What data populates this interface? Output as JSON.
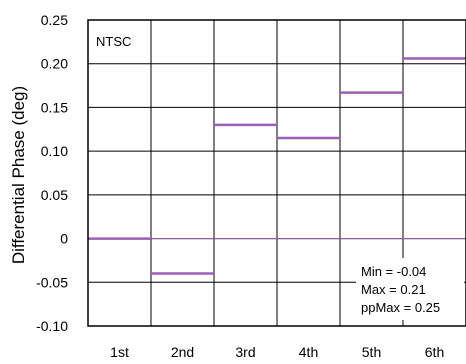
{
  "chart_data": {
    "type": "bar",
    "style": "horizontal step segments",
    "categories": [
      "1st",
      "2nd",
      "3rd",
      "4th",
      "5th",
      "6th"
    ],
    "values": [
      0.0,
      -0.04,
      0.13,
      0.115,
      0.167,
      0.206
    ],
    "ylabel": "Differential Phase (deg)",
    "xlabel": "",
    "ylim": [
      -0.1,
      0.25
    ],
    "yticks": [
      "0.25",
      "0.20",
      "0.15",
      "0.10",
      "0.05",
      "0",
      "-0.05",
      "-0.10"
    ],
    "ytick_values": [
      0.25,
      0.2,
      0.15,
      0.1,
      0.05,
      0,
      -0.05,
      -0.1
    ],
    "grid": true,
    "series_color": "#9b5fb5",
    "label_box": "NTSC",
    "annotations": [
      "Min = -0.04",
      "Max = 0.21",
      "ppMax = 0.25"
    ]
  }
}
